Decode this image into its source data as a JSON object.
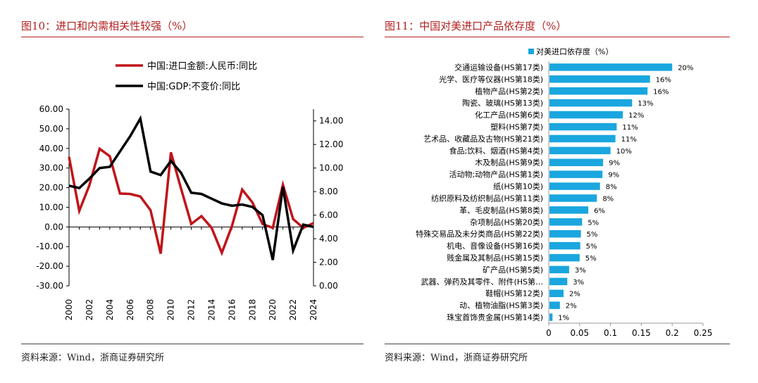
{
  "left": {
    "figure_title": "图10：进口和内需相关性较强（%）",
    "source": "资料来源：Wind，浙商证券研究所"
  },
  "right": {
    "figure_title": "图11：中国对美进口产品依存度（%）",
    "source": "资料来源：Wind，浙商证券研究所"
  },
  "colors": {
    "red": "#c0141b",
    "black": "#000000",
    "blue": "#1aa6df",
    "title": "#b22222"
  },
  "chart_data": [
    {
      "type": "line",
      "x": [
        2000,
        2001,
        2002,
        2003,
        2004,
        2005,
        2006,
        2007,
        2008,
        2009,
        2010,
        2011,
        2012,
        2013,
        2014,
        2015,
        2016,
        2017,
        2018,
        2019,
        2020,
        2021,
        2022,
        2023,
        2024
      ],
      "series": [
        {
          "name": "中国:进口金额:人民币:同比",
          "axis": "left",
          "values": [
            35.7,
            8.2,
            21.2,
            39.8,
            36.0,
            17.0,
            16.8,
            15.5,
            8.5,
            -13.6,
            38.0,
            19.5,
            1.5,
            5.5,
            -0.5,
            -13.2,
            0.5,
            19.0,
            12.5,
            1.5,
            -0.5,
            21.5,
            4.0,
            -0.5,
            2.0
          ]
        },
        {
          "name": "中国:GDP:不变价:同比",
          "axis": "right",
          "values": [
            8.5,
            8.3,
            9.1,
            10.0,
            10.1,
            11.4,
            12.7,
            14.2,
            9.7,
            9.4,
            10.6,
            9.6,
            7.9,
            7.8,
            7.4,
            7.0,
            6.8,
            6.9,
            6.7,
            6.0,
            2.2,
            8.4,
            3.0,
            5.2,
            5.0
          ]
        }
      ],
      "ylim": [
        -30,
        60
      ],
      "yticks": [
        "-30.00",
        "-20.00",
        "-10.00",
        "0.00",
        "10.00",
        "20.00",
        "30.00",
        "40.00",
        "50.00",
        "60.00"
      ],
      "y2lim": [
        0,
        15
      ],
      "y2ticks": [
        "0.00",
        "2.00",
        "4.00",
        "6.00",
        "8.00",
        "10.00",
        "12.00",
        "14.00"
      ],
      "xticks": [
        "2000",
        "2002",
        "2004",
        "2006",
        "2008",
        "2010",
        "2012",
        "2014",
        "2016",
        "2018",
        "2020",
        "2022",
        "2024"
      ],
      "legend": "top",
      "grid": false
    },
    {
      "type": "bar",
      "orientation": "horizontal",
      "legend_label": "对美进口依存度（%）",
      "categories": [
        "交通运输设备(HS第17类)",
        "光学、医疗等仪器(HS第18类)",
        "植物产品(HS第2类)",
        "陶瓷、玻璃(HS第13类)",
        "化工产品(HS第6类)",
        "塑料(HS第7类)",
        "艺术品、收藏品及古物(HS第21类)",
        "食品;饮料、烟酒(HS第4类)",
        "木及制品(HS第9类)",
        "活动物;动物产品(HS第1类)",
        "纸(HS第10类)",
        "纺织原料及纺织制品(HS第11类)",
        "革、毛皮制品(HS第8类)",
        "杂项制品(HS第20类)",
        "特殊交易品及未分类商品(HS第22类)",
        "机电、音像设备(HS第16类)",
        "贱金属及其制品(HS第15类)",
        "矿产品(HS第5类)",
        "武器、弹药及其零件、附件(HS第…",
        "鞋帽(HS第12类)",
        "动、植物油脂(HS第3类)",
        "珠宝首饰贵金属(HS第14类)"
      ],
      "values": [
        0.2,
        0.164,
        0.16,
        0.135,
        0.12,
        0.11,
        0.108,
        0.1,
        0.088,
        0.087,
        0.083,
        0.078,
        0.064,
        0.054,
        0.052,
        0.051,
        0.05,
        0.033,
        0.03,
        0.024,
        0.018,
        0.006
      ],
      "data_labels": [
        "20%",
        "16%",
        "16%",
        "13%",
        "12%",
        "11%",
        "11%",
        "10%",
        "9%",
        "9%",
        "8%",
        "8%",
        "6%",
        "5%",
        "5%",
        "5%",
        "5%",
        "3%",
        "3%",
        "2%",
        "2%",
        "1%"
      ],
      "xlim": [
        0,
        0.25
      ],
      "xticks": [
        "0",
        "0.05",
        "0.1",
        "0.15",
        "0.2",
        "0.25"
      ],
      "legend": "top-left",
      "grid": false
    }
  ]
}
